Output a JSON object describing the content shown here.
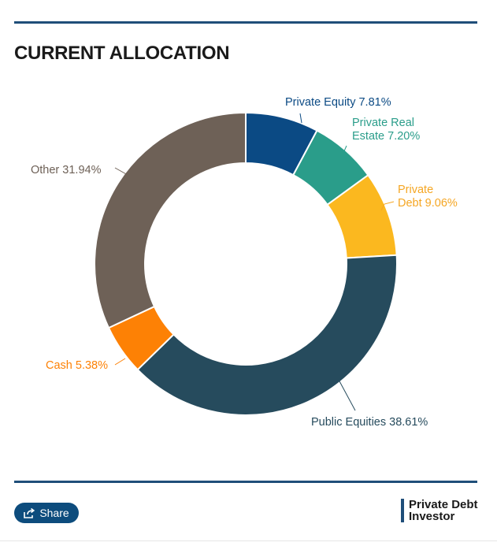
{
  "title": "CURRENT ALLOCATION",
  "chart_data": {
    "type": "pie",
    "style": "donut",
    "categories": [
      "Private Equity",
      "Private Real Estate",
      "Private Debt",
      "Public Equities",
      "Cash",
      "Other"
    ],
    "values": [
      7.81,
      7.2,
      9.06,
      38.61,
      5.38,
      31.94
    ],
    "labels": [
      [
        "Private Equity 7.81%"
      ],
      [
        "Private Real",
        "Estate 7.20%"
      ],
      [
        "Private",
        "Debt 9.06%"
      ],
      [
        "Public Equities 38.61%"
      ],
      [
        "Cash 5.38%"
      ],
      [
        "Other 31.94%"
      ]
    ],
    "colors": [
      "#0b4a84",
      "#2a9d8a",
      "#fbb81f",
      "#264b5d",
      "#fd8105",
      "#6e6157"
    ],
    "label_colors": [
      "#0b4a84",
      "#2a9d8a",
      "#f5a623",
      "#264b5d",
      "#fd8105",
      "#6e6157"
    ]
  },
  "share": {
    "label": "Share",
    "icon": "share-icon"
  },
  "brand": {
    "line1": "Private Debt",
    "line2": "Investor"
  }
}
